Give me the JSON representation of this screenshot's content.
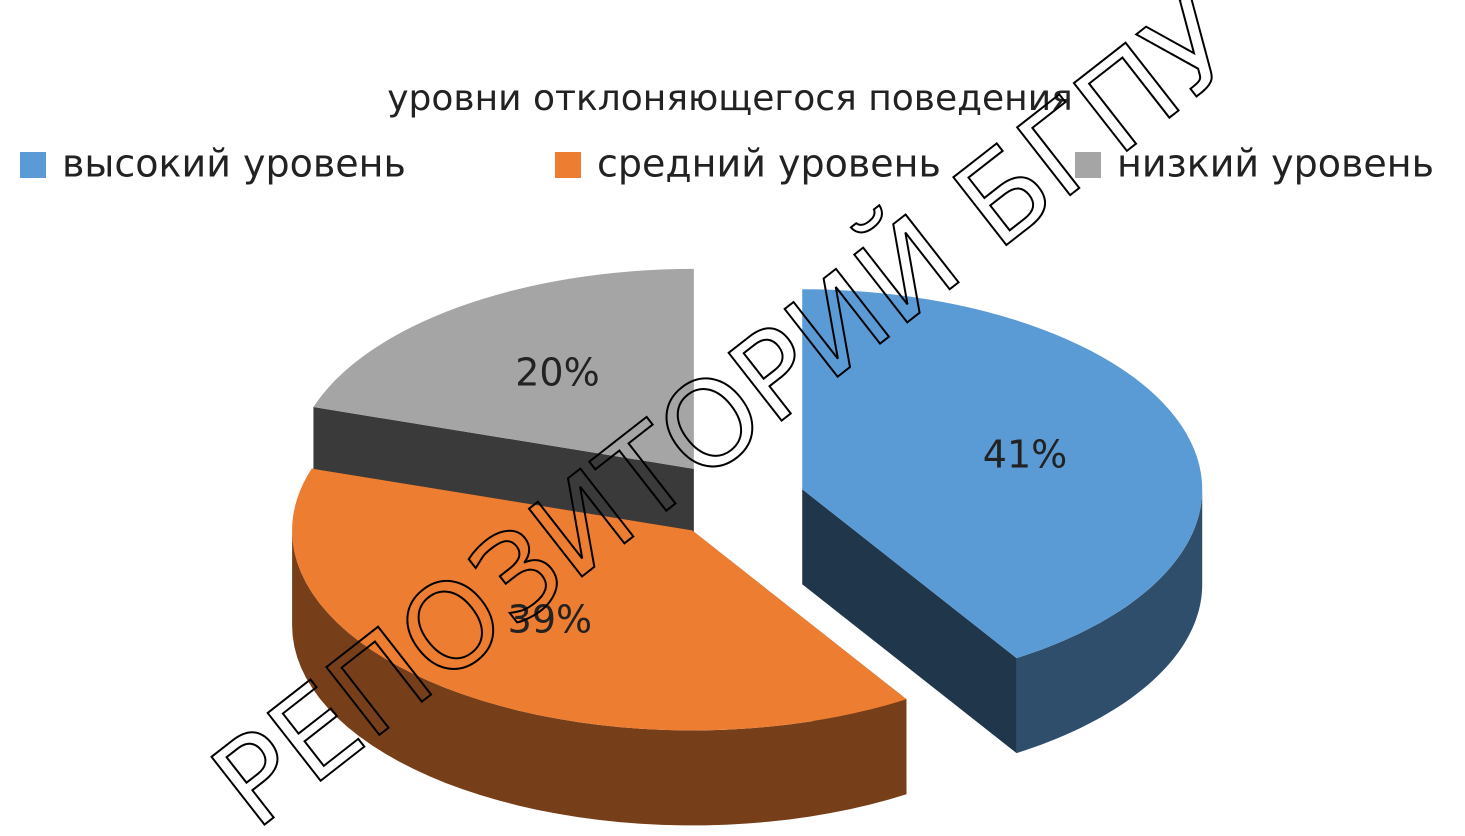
{
  "chart_data": {
    "type": "pie",
    "title": "уровни отклоняющегося поведения",
    "categories": [
      "высокий уровень",
      "средний уровень",
      "низкий уровень"
    ],
    "values": [
      41,
      39,
      20
    ],
    "value_labels": [
      "41%",
      "39%",
      "20%"
    ],
    "colors": [
      "#5b9bd5",
      "#ed7d31",
      "#a5a5a5"
    ],
    "legend": "top",
    "exploded": true,
    "three_d": true,
    "watermark": "РЕПОЗИТОРИЙ БГПУ"
  }
}
